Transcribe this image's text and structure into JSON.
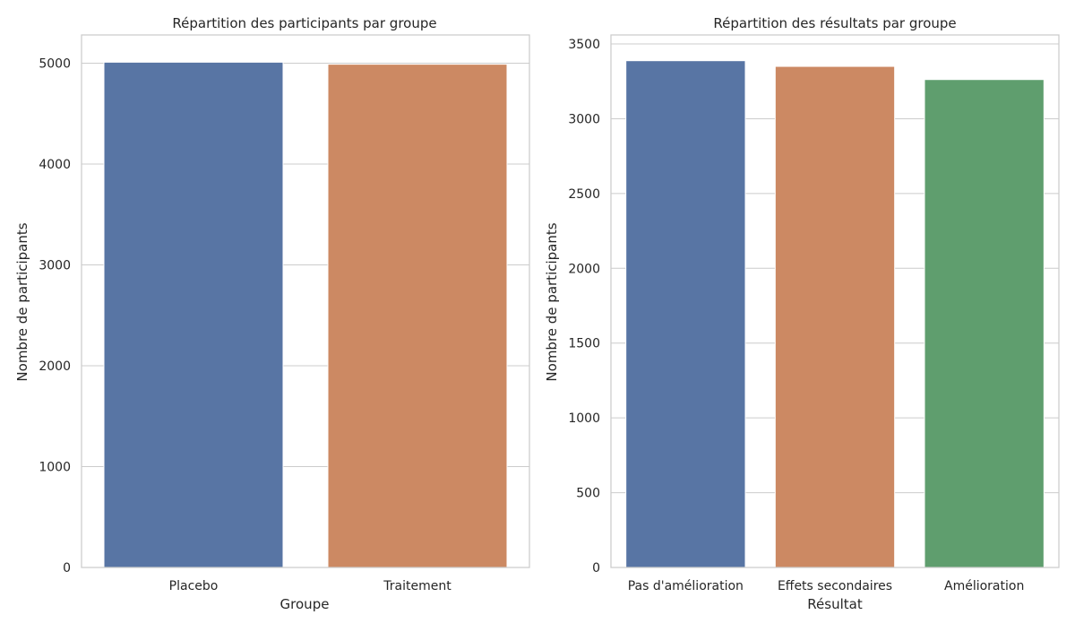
{
  "chart_data": [
    {
      "type": "bar",
      "title": "Répartition des participants par groupe",
      "xlabel": "Groupe",
      "ylabel": "Nombre de participants",
      "categories": [
        "Placebo",
        "Traitement"
      ],
      "values": [
        5010,
        4990
      ],
      "ylim": [
        0,
        5280
      ],
      "yticks": [
        0,
        1000,
        2000,
        3000,
        4000,
        5000
      ],
      "colors": [
        "#5875a4",
        "#cc8963"
      ],
      "grid": "horizontal"
    },
    {
      "type": "bar",
      "title": "Répartition des résultats par groupe",
      "xlabel": "Résultat",
      "ylabel": "Nombre de participants",
      "categories": [
        "Pas d'amélioration",
        "Effets secondaires",
        "Amélioration"
      ],
      "values": [
        3388,
        3350,
        3262
      ],
      "ylim": [
        0,
        3560
      ],
      "yticks": [
        0,
        500,
        1000,
        1500,
        2000,
        2500,
        3000,
        3500
      ],
      "colors": [
        "#5875a4",
        "#cc8963",
        "#5f9e6e"
      ],
      "grid": "horizontal"
    }
  ]
}
